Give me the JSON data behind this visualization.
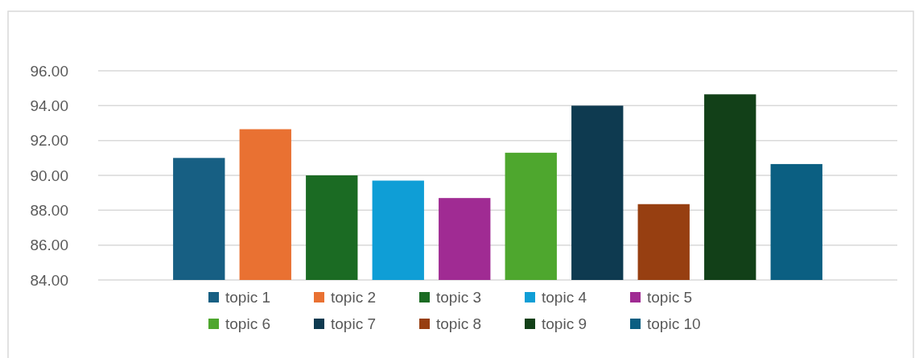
{
  "chart_data": {
    "type": "bar",
    "categories": [
      null
    ],
    "series": [
      {
        "name": "topic 1",
        "color": "#175f83",
        "values": [
          91.0
        ]
      },
      {
        "name": "topic 2",
        "color": "#e97132",
        "values": [
          92.65
        ]
      },
      {
        "name": "topic 3",
        "color": "#1b6b23",
        "values": [
          90.0
        ]
      },
      {
        "name": "topic 4",
        "color": "#0f9ed6",
        "values": [
          89.7
        ]
      },
      {
        "name": "topic 5",
        "color": "#a02b93",
        "values": [
          88.7
        ]
      },
      {
        "name": "topic 6",
        "color": "#4ea72e",
        "values": [
          91.3
        ]
      },
      {
        "name": "topic 7",
        "color": "#0e3a50",
        "values": [
          94.0
        ]
      },
      {
        "name": "topic 8",
        "color": "#973f11",
        "values": [
          88.35
        ]
      },
      {
        "name": "topic 9",
        "color": "#124018",
        "values": [
          94.65
        ]
      },
      {
        "name": "topic 10",
        "color": "#0b5f82",
        "values": [
          90.65
        ]
      }
    ],
    "ylim": [
      84,
      96
    ],
    "yticks": [
      {
        "value": 84,
        "label": "84.00"
      },
      {
        "value": 86,
        "label": "86.00"
      },
      {
        "value": 88,
        "label": "88.00"
      },
      {
        "value": 90,
        "label": "90.00"
      },
      {
        "value": 92,
        "label": "92.00"
      },
      {
        "value": 94,
        "label": "94.00"
      },
      {
        "value": 96,
        "label": "96.00"
      }
    ],
    "grid": "y",
    "legend": "bottom"
  }
}
